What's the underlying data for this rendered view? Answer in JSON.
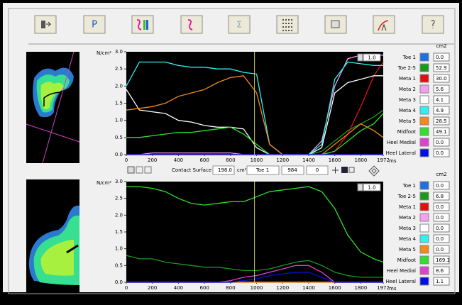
{
  "toolbar": {
    "p_button": "P",
    "sigma_button": "Σ"
  },
  "contact_bar": {
    "label": "Contact Surface",
    "surface": "198.0",
    "unit": "cm²",
    "region": "Toe 1",
    "extra": "0"
  },
  "chart_data": [
    {
      "type": "line",
      "ylabel": "N/cm²",
      "xlabel": "ms",
      "legend_title": "cm2",
      "scale_label": "1.0",
      "xlim": [
        0,
        1972
      ],
      "ylim": [
        0,
        3
      ],
      "xticks": [
        0,
        200,
        400,
        600,
        800,
        1000,
        1200,
        1400,
        1600,
        1800,
        1972
      ],
      "yticks": [
        {
          "value": 0,
          "label": "0.0"
        },
        {
          "value": 0.5,
          "label": "0.5"
        },
        {
          "value": 1,
          "label": "1.0"
        },
        {
          "value": 1.5,
          "label": "1.5"
        },
        {
          "value": 2,
          "label": "2.0"
        },
        {
          "value": 2.5,
          "label": "2.5"
        },
        {
          "value": 3,
          "label": "3.0"
        }
      ],
      "cursor_x": 984,
      "x": [
        0,
        100,
        200,
        300,
        400,
        500,
        600,
        700,
        800,
        900,
        1000,
        1100,
        1200,
        1300,
        1400,
        1500,
        1600,
        1700,
        1800,
        1900,
        1972
      ],
      "series": [
        {
          "name": "Toe 1",
          "color": "#1e6fe0",
          "surface_label": "0.0",
          "values": [
            0,
            0,
            0,
            0,
            0,
            0,
            0,
            0,
            0,
            0,
            0,
            0,
            0,
            0,
            0,
            0,
            0,
            0,
            0,
            0,
            0
          ]
        },
        {
          "name": "Toe 2-5",
          "color": "#1a9a1a",
          "surface_label": "52.9",
          "values": [
            0,
            0,
            0,
            0,
            0,
            0,
            0,
            0,
            0,
            0,
            0,
            0,
            0,
            0,
            0,
            0.1,
            0.4,
            0.7,
            0.9,
            1.1,
            1.3
          ]
        },
        {
          "name": "Meta 1",
          "color": "#e01010",
          "surface_label": "30.0",
          "values": [
            0,
            0,
            0,
            0,
            0,
            0,
            0,
            0,
            0,
            0,
            0,
            0,
            0,
            0,
            0,
            0,
            0.1,
            0.6,
            1.4,
            2.3,
            2.7
          ]
        },
        {
          "name": "Meta 2",
          "color": "#f4a0f0",
          "surface_label": "5.6",
          "values": [
            0,
            0,
            0.05,
            0.05,
            0.05,
            0.05,
            0.05,
            0.05,
            0.05,
            0,
            0,
            0,
            0,
            0,
            0,
            0.4,
            2.0,
            2.8,
            2.9,
            2.9,
            2.9
          ]
        },
        {
          "name": "Meta 3",
          "color": "#ffffff",
          "surface_label": "4.1",
          "values": [
            1.9,
            1.3,
            1.25,
            1.2,
            1.0,
            0.95,
            0.85,
            0.8,
            0.8,
            0.75,
            0.2,
            0,
            0,
            0,
            0,
            0.2,
            1.8,
            2.1,
            2.2,
            2.3,
            2.3
          ]
        },
        {
          "name": "Meta 4",
          "color": "#30f0f0",
          "surface_label": "4.9",
          "values": [
            2.0,
            2.7,
            2.7,
            2.7,
            2.6,
            2.55,
            2.55,
            2.5,
            2.5,
            2.4,
            2.35,
            0.3,
            0,
            0,
            0,
            0.3,
            2.2,
            2.7,
            2.65,
            2.6,
            2.6
          ]
        },
        {
          "name": "Meta 5",
          "color": "#f08a1e",
          "surface_label": "28.5",
          "values": [
            1.3,
            1.35,
            1.4,
            1.5,
            1.7,
            1.8,
            1.9,
            2.1,
            2.25,
            2.3,
            1.8,
            0.3,
            0,
            0,
            0,
            0,
            0.3,
            0.6,
            0.9,
            0.7,
            0.5
          ]
        },
        {
          "name": "Midfoot",
          "color": "#30e030",
          "surface_label": "49.1",
          "values": [
            0.5,
            0.5,
            0.55,
            0.6,
            0.65,
            0.65,
            0.7,
            0.75,
            0.8,
            0.6,
            0.3,
            0,
            0,
            0,
            0,
            0,
            0.1,
            0.4,
            0.7,
            0.9,
            1.2
          ]
        },
        {
          "name": "Heel Medial",
          "color": "#e040d0",
          "surface_label": "0.0",
          "values": [
            0,
            0,
            0,
            0,
            0,
            0,
            0,
            0,
            0,
            0,
            0,
            0,
            0,
            0,
            0,
            0,
            0,
            0,
            0,
            0,
            0
          ]
        },
        {
          "name": "Heel Lateral",
          "color": "#0010e0",
          "surface_label": "0.0",
          "values": [
            0,
            0,
            0,
            0,
            0,
            0,
            0,
            0,
            0,
            0,
            0,
            0,
            0,
            0,
            0,
            0,
            0,
            0,
            0,
            0,
            0
          ]
        }
      ]
    },
    {
      "type": "line",
      "ylabel": "N/cm²",
      "xlabel": "ms",
      "legend_title": "cm2",
      "scale_label": "1.0",
      "xlim": [
        0,
        1972
      ],
      "ylim": [
        0,
        3
      ],
      "xticks": [
        0,
        200,
        400,
        600,
        800,
        1000,
        1200,
        1400,
        1600,
        1800,
        1972
      ],
      "yticks": [
        {
          "value": 0,
          "label": "0.0"
        },
        {
          "value": 0.5,
          "label": "0.5"
        },
        {
          "value": 1,
          "label": "1.0"
        },
        {
          "value": 1.5,
          "label": "1.5"
        },
        {
          "value": 2,
          "label": "2.0"
        },
        {
          "value": 2.5,
          "label": "2.5"
        },
        {
          "value": 3,
          "label": "3.0"
        }
      ],
      "cursor_x": 984,
      "x": [
        0,
        100,
        200,
        300,
        400,
        500,
        600,
        700,
        800,
        900,
        1000,
        1100,
        1200,
        1300,
        1400,
        1500,
        1600,
        1700,
        1800,
        1900,
        1972
      ],
      "series": [
        {
          "name": "Toe 1",
          "color": "#1e6fe0",
          "surface_label": "0.0",
          "values": [
            0,
            0,
            0,
            0,
            0,
            0,
            0,
            0,
            0,
            0,
            0,
            0,
            0,
            0,
            0,
            0,
            0,
            0,
            0,
            0,
            0
          ]
        },
        {
          "name": "Toe 2-5",
          "color": "#1a9a1a",
          "surface_label": "6.8",
          "values": [
            0.8,
            0.7,
            0.7,
            0.6,
            0.55,
            0.5,
            0.45,
            0.45,
            0.4,
            0.35,
            0.35,
            0.4,
            0.5,
            0.6,
            0.65,
            0.5,
            0.3,
            0.2,
            0.15,
            0.15,
            0.15
          ]
        },
        {
          "name": "Meta 1",
          "color": "#e01010",
          "surface_label": "0.0",
          "values": [
            0,
            0,
            0,
            0,
            0,
            0,
            0,
            0,
            0,
            0,
            0,
            0,
            0,
            0,
            0,
            0,
            0,
            0,
            0,
            0,
            0
          ]
        },
        {
          "name": "Meta 2",
          "color": "#f4a0f0",
          "surface_label": "0.0",
          "values": [
            0,
            0,
            0,
            0,
            0,
            0,
            0,
            0,
            0,
            0,
            0,
            0,
            0,
            0,
            0,
            0,
            0,
            0,
            0,
            0,
            0
          ]
        },
        {
          "name": "Meta 3",
          "color": "#ffffff",
          "surface_label": "0.0",
          "values": [
            0,
            0,
            0,
            0,
            0,
            0,
            0,
            0,
            0,
            0,
            0,
            0,
            0,
            0,
            0,
            0,
            0,
            0,
            0,
            0,
            0
          ]
        },
        {
          "name": "Meta 4",
          "color": "#30f0f0",
          "surface_label": "0.0",
          "values": [
            0,
            0,
            0,
            0,
            0,
            0,
            0,
            0,
            0,
            0,
            0,
            0,
            0,
            0,
            0,
            0,
            0,
            0,
            0,
            0,
            0
          ]
        },
        {
          "name": "Meta 5",
          "color": "#f08a1e",
          "surface_label": "0.0",
          "values": [
            0,
            0,
            0,
            0,
            0,
            0,
            0,
            0,
            0,
            0,
            0,
            0,
            0,
            0,
            0,
            0,
            0,
            0,
            0,
            0,
            0
          ]
        },
        {
          "name": "Midfoot",
          "color": "#30e030",
          "surface_label": "169.1",
          "values": [
            2.85,
            2.85,
            2.8,
            2.7,
            2.5,
            2.35,
            2.3,
            2.35,
            2.4,
            2.4,
            2.55,
            2.7,
            2.75,
            2.8,
            2.85,
            2.7,
            2.2,
            1.4,
            0.9,
            0.7,
            0.6
          ]
        },
        {
          "name": "Heel Medial",
          "color": "#e040d0",
          "surface_label": "8.6",
          "values": [
            0,
            0,
            0,
            0,
            0,
            0,
            0,
            0,
            0.05,
            0.15,
            0.2,
            0.3,
            0.4,
            0.5,
            0.5,
            0.3,
            0,
            0,
            0,
            0,
            0
          ]
        },
        {
          "name": "Heel Lateral",
          "color": "#0010e0",
          "surface_label": "1.1",
          "values": [
            0,
            0,
            0,
            0,
            0,
            0,
            0,
            0,
            0,
            0.05,
            0.1,
            0.2,
            0.25,
            0.3,
            0.3,
            0.15,
            0,
            0,
            0,
            0,
            0
          ]
        }
      ]
    }
  ]
}
